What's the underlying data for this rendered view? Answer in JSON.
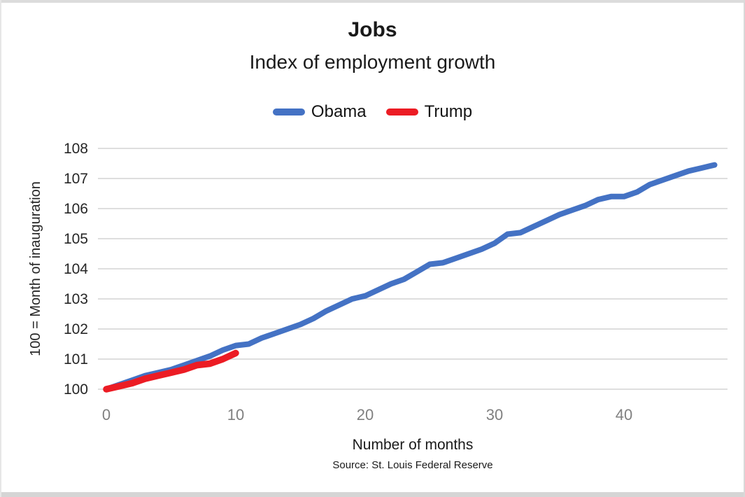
{
  "chart_data": {
    "type": "line",
    "title": "Jobs",
    "subtitle": "Index of employment growth",
    "xlabel": "Number of months",
    "ylabel": "100 = Month of inauguration",
    "source": "Source: St. Louis Federal Reserve",
    "xlim": [
      0,
      48
    ],
    "ylim": [
      100,
      108
    ],
    "xticks": [
      0,
      10,
      20,
      30,
      40
    ],
    "yticks": [
      100,
      101,
      102,
      103,
      104,
      105,
      106,
      107,
      108
    ],
    "grid": "horizontal",
    "gridline_color": "#d9d9d9",
    "legend_position": "top-center",
    "y_tick_color": "#262626",
    "x_tick_color": "#808080",
    "series": [
      {
        "name": "Obama",
        "color": "#4472c4",
        "x_start": 0,
        "x_step": 1,
        "values": [
          100,
          100.15,
          100.3,
          100.45,
          100.55,
          100.65,
          100.8,
          100.95,
          101.1,
          101.3,
          101.45,
          101.5,
          101.7,
          101.85,
          102.0,
          102.15,
          102.35,
          102.6,
          102.8,
          103.0,
          103.1,
          103.3,
          103.5,
          103.65,
          103.9,
          104.15,
          104.2,
          104.35,
          104.5,
          104.65,
          104.85,
          105.15,
          105.2,
          105.4,
          105.6,
          105.8,
          105.95,
          106.1,
          106.3,
          106.4,
          106.4,
          106.55,
          106.8,
          106.95,
          107.1,
          107.25,
          107.35,
          107.45
        ]
      },
      {
        "name": "Trump",
        "color": "#ec1c24",
        "x_start": 0,
        "x_step": 1,
        "values": [
          100,
          100.1,
          100.2,
          100.35,
          100.45,
          100.55,
          100.65,
          100.8,
          100.85,
          101.0,
          101.2
        ]
      }
    ]
  }
}
